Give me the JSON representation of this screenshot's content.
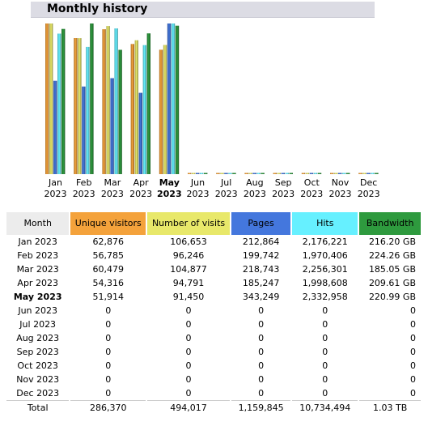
{
  "section": {
    "title": "Monthly history"
  },
  "colors": {
    "unique_visitors": "#f4a23b",
    "visits": "#e8e86a",
    "pages": "#4477dd",
    "hits": "#66f0ff",
    "bandwidth": "#2e9a3e"
  },
  "chart_data": {
    "type": "bar",
    "categories": [
      "Jan 2023",
      "Feb 2023",
      "Mar 2023",
      "Apr 2023",
      "May 2023",
      "Jun 2023",
      "Jul 2023",
      "Aug 2023",
      "Sep 2023",
      "Oct 2023",
      "Nov 2023",
      "Dec 2023"
    ],
    "highlight": "May 2023",
    "series": [
      {
        "key": "unique_visitors",
        "values": [
          62876,
          56785,
          60479,
          54316,
          51914,
          0,
          0,
          0,
          0,
          0,
          0,
          0
        ]
      },
      {
        "key": "visits",
        "values": [
          106653,
          96246,
          104877,
          94791,
          91450,
          0,
          0,
          0,
          0,
          0,
          0,
          0
        ]
      },
      {
        "key": "pages",
        "values": [
          212864,
          199742,
          218743,
          185247,
          343249,
          0,
          0,
          0,
          0,
          0,
          0,
          0
        ]
      },
      {
        "key": "hits",
        "values": [
          2176221,
          1970406,
          2256301,
          1998608,
          2332958,
          0,
          0,
          0,
          0,
          0,
          0,
          0
        ]
      },
      {
        "key": "bandwidth",
        "values": [
          216.2,
          224.26,
          185.05,
          209.61,
          220.99,
          0,
          0,
          0,
          0,
          0,
          0,
          0
        ]
      }
    ]
  },
  "table": {
    "headers": {
      "month": "Month",
      "unique_visitors": "Unique visitors",
      "visits": "Number of visits",
      "pages": "Pages",
      "hits": "Hits",
      "bandwidth": "Bandwidth"
    },
    "rows": [
      {
        "month": "Jan 2023",
        "unique": "62,876",
        "visits": "106,653",
        "pages": "212,864",
        "hits": "2,176,221",
        "bandwidth": "216.20 GB"
      },
      {
        "month": "Feb 2023",
        "unique": "56,785",
        "visits": "96,246",
        "pages": "199,742",
        "hits": "1,970,406",
        "bandwidth": "224.26 GB"
      },
      {
        "month": "Mar 2023",
        "unique": "60,479",
        "visits": "104,877",
        "pages": "218,743",
        "hits": "2,256,301",
        "bandwidth": "185.05 GB"
      },
      {
        "month": "Apr 2023",
        "unique": "54,316",
        "visits": "94,791",
        "pages": "185,247",
        "hits": "1,998,608",
        "bandwidth": "209.61 GB"
      },
      {
        "month": "May 2023",
        "unique": "51,914",
        "visits": "91,450",
        "pages": "343,249",
        "hits": "2,332,958",
        "bandwidth": "220.99 GB"
      },
      {
        "month": "Jun 2023",
        "unique": "0",
        "visits": "0",
        "pages": "0",
        "hits": "0",
        "bandwidth": "0"
      },
      {
        "month": "Jul 2023",
        "unique": "0",
        "visits": "0",
        "pages": "0",
        "hits": "0",
        "bandwidth": "0"
      },
      {
        "month": "Aug 2023",
        "unique": "0",
        "visits": "0",
        "pages": "0",
        "hits": "0",
        "bandwidth": "0"
      },
      {
        "month": "Sep 2023",
        "unique": "0",
        "visits": "0",
        "pages": "0",
        "hits": "0",
        "bandwidth": "0"
      },
      {
        "month": "Oct 2023",
        "unique": "0",
        "visits": "0",
        "pages": "0",
        "hits": "0",
        "bandwidth": "0"
      },
      {
        "month": "Nov 2023",
        "unique": "0",
        "visits": "0",
        "pages": "0",
        "hits": "0",
        "bandwidth": "0"
      },
      {
        "month": "Dec 2023",
        "unique": "0",
        "visits": "0",
        "pages": "0",
        "hits": "0",
        "bandwidth": "0"
      }
    ],
    "total": {
      "label": "Total",
      "unique": "286,370",
      "visits": "494,017",
      "pages": "1,159,845",
      "hits": "10,734,494",
      "bandwidth": "1.03 TB"
    }
  }
}
